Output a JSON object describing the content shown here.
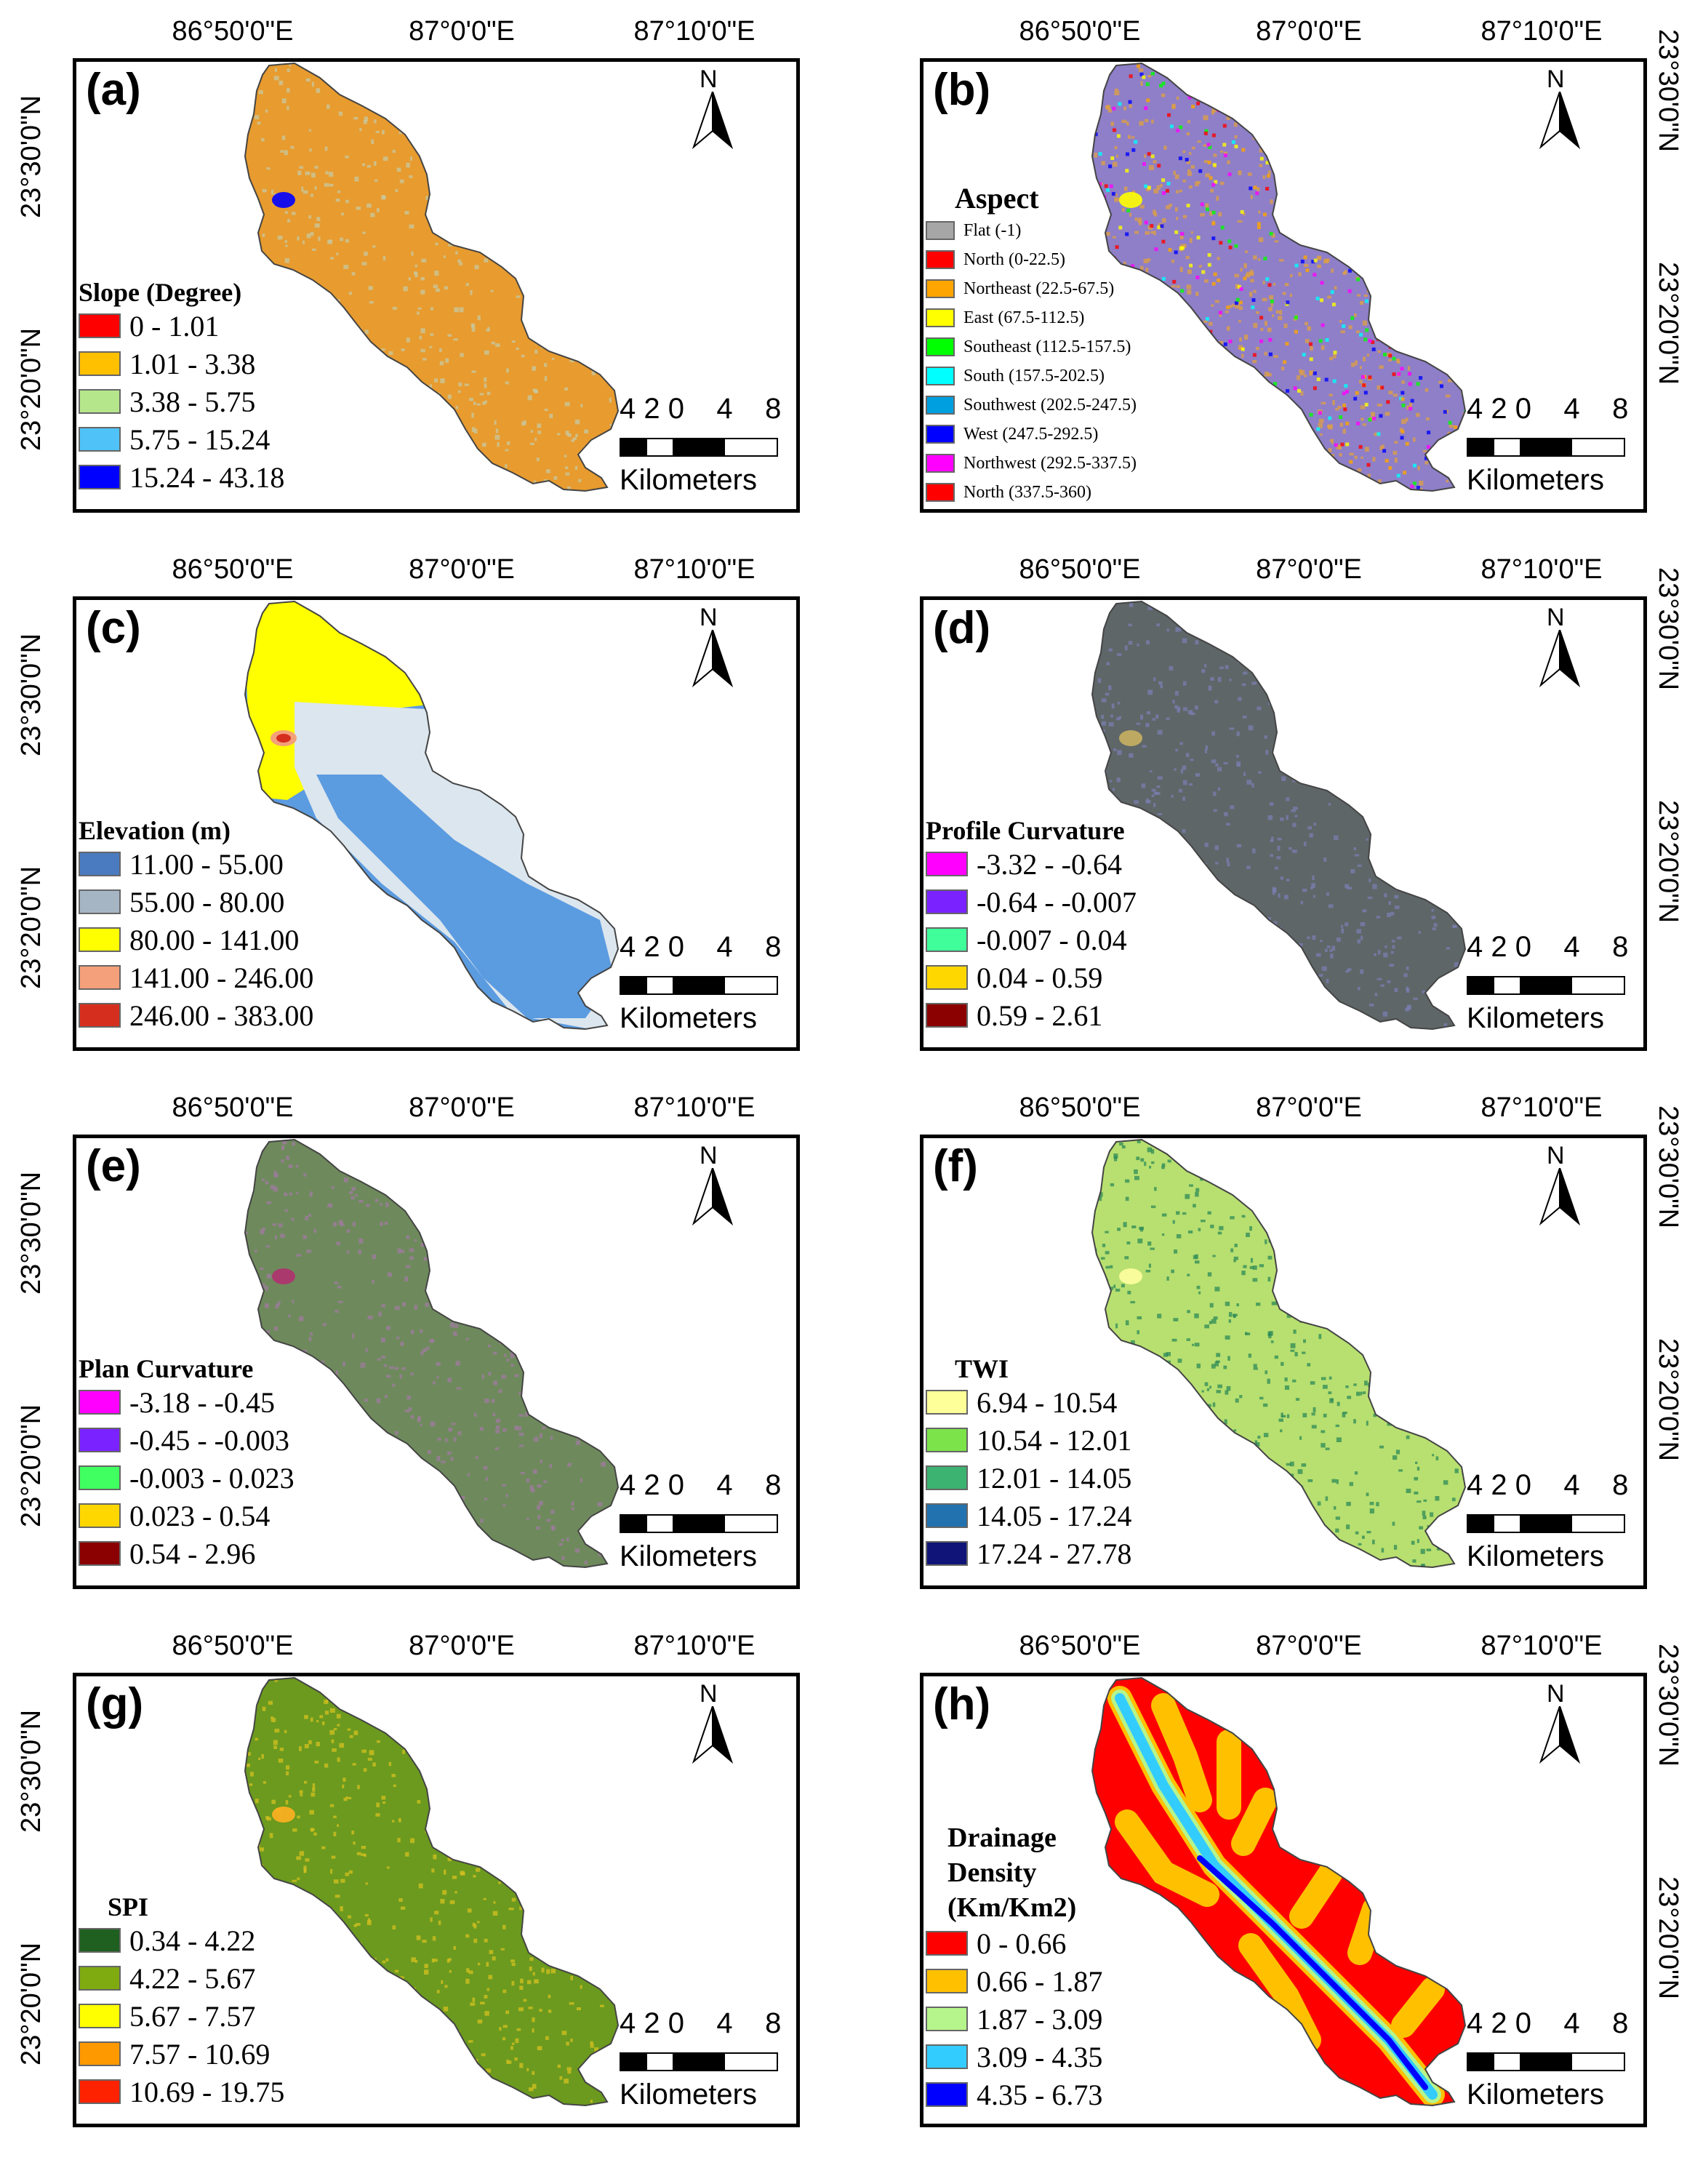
{
  "coords": {
    "top": [
      "86°50'0\"E",
      "87°0'0\"E",
      "87°10'0\"E"
    ],
    "side": [
      "23°30'0\"N",
      "23°20'0\"N"
    ]
  },
  "north_label": "N",
  "scale": {
    "numbers": "4 2 0    4    8",
    "units": "Kilometers"
  },
  "panels": [
    {
      "id": "a",
      "label": "(a)",
      "legend_title": "Slope (Degree)",
      "fill": "#E89B2E",
      "speckle": "#C8C8A0",
      "classes": [
        {
          "label": "0 - 1.01",
          "color": "#FF0000"
        },
        {
          "label": "1.01 - 3.38",
          "color": "#FFC000"
        },
        {
          "label": "3.38 - 5.75",
          "color": "#B5E68C"
        },
        {
          "label": "5.75 - 15.24",
          "color": "#4FC3F7"
        },
        {
          "label": "15.24 - 43.18",
          "color": "#0000FF"
        }
      ]
    },
    {
      "id": "b",
      "label": "(b)",
      "legend_title": "Aspect",
      "fill": "#8E7FC8",
      "speckle": "#E0A040",
      "classes": [
        {
          "label": "Flat (-1)",
          "color": "#A6A6A6"
        },
        {
          "label": "North (0-22.5)",
          "color": "#FF0000"
        },
        {
          "label": "Northeast (22.5-67.5)",
          "color": "#FFA500"
        },
        {
          "label": "East (67.5-112.5)",
          "color": "#FFFF00"
        },
        {
          "label": "Southeast (112.5-157.5)",
          "color": "#00FF00"
        },
        {
          "label": "South (157.5-202.5)",
          "color": "#00FFFF"
        },
        {
          "label": "Southwest (202.5-247.5)",
          "color": "#00A0E0"
        },
        {
          "label": "West (247.5-292.5)",
          "color": "#0000FF"
        },
        {
          "label": "Northwest (292.5-337.5)",
          "color": "#FF00FF"
        },
        {
          "label": "North (337.5-360)",
          "color": "#FF0000"
        }
      ]
    },
    {
      "id": "c",
      "label": "(c)",
      "legend_title": "Elevation (m)",
      "fill": "#5B9BE0",
      "speckle": "#D6E3EC",
      "classes": [
        {
          "label": "11.00 - 55.00",
          "color": "#4A7ABF"
        },
        {
          "label": "55.00 - 80.00",
          "color": "#A6B5C4"
        },
        {
          "label": "80.00 - 141.00",
          "color": "#FFFF00"
        },
        {
          "label": "141.00 - 246.00",
          "color": "#F4A07A"
        },
        {
          "label": "246.00 - 383.00",
          "color": "#D62E1E"
        }
      ]
    },
    {
      "id": "d",
      "label": "(d)",
      "legend_title": "Profile Curvature",
      "fill": "#5F6668",
      "speckle": "#7A7FB0",
      "classes": [
        {
          "label": "-3.32 - -0.64",
          "color": "#FF00FF"
        },
        {
          "label": "-0.64 - -0.007",
          "color": "#7A22FF"
        },
        {
          "label": "-0.007 - 0.04",
          "color": "#40FF9A"
        },
        {
          "label": "0.04 - 0.59",
          "color": "#FFD700"
        },
        {
          "label": "0.59 - 2.61",
          "color": "#8B0000"
        }
      ]
    },
    {
      "id": "e",
      "label": "(e)",
      "legend_title": "Plan Curvature",
      "fill": "#6E8A5C",
      "speckle": "#A07AA0",
      "classes": [
        {
          "label": "-3.18 - -0.45",
          "color": "#FF00FF"
        },
        {
          "label": "-0.45 - -0.003",
          "color": "#7A22FF"
        },
        {
          "label": "-0.003 - 0.023",
          "color": "#40FF60"
        },
        {
          "label": "0.023 - 0.54",
          "color": "#FFD700"
        },
        {
          "label": "0.54 - 2.96",
          "color": "#8B0000"
        }
      ]
    },
    {
      "id": "f",
      "label": "(f)",
      "legend_title": "TWI",
      "fill": "#B8E070",
      "speckle": "#2E8B57",
      "classes": [
        {
          "label": "6.94 - 10.54",
          "color": "#FFFF99"
        },
        {
          "label": "10.54 - 12.01",
          "color": "#7CE34A"
        },
        {
          "label": "12.01 - 14.05",
          "color": "#3CB371"
        },
        {
          "label": "14.05 - 17.24",
          "color": "#2272B0"
        },
        {
          "label": "17.24 - 27.78",
          "color": "#101478"
        }
      ]
    },
    {
      "id": "g",
      "label": "(g)",
      "legend_title": "SPI",
      "fill": "#6B9A1E",
      "speckle": "#D4C020",
      "classes": [
        {
          "label": "0.34 - 4.22",
          "color": "#1F5F1F"
        },
        {
          "label": "4.22 - 5.67",
          "color": "#7FAA10"
        },
        {
          "label": "5.67 - 7.57",
          "color": "#FFFF00"
        },
        {
          "label": "7.57 - 10.69",
          "color": "#FF9900"
        },
        {
          "label": "10.69 - 19.75",
          "color": "#FF2200"
        }
      ]
    },
    {
      "id": "h",
      "label": "(h)",
      "legend_title": "Drainage Density (Km/Km2)",
      "fill": "#FF0000",
      "speckle": "#FFC000",
      "classes": [
        {
          "label": "0 - 0.66",
          "color": "#FF0000"
        },
        {
          "label": "0.66 - 1.87",
          "color": "#FFC000"
        },
        {
          "label": "1.87 - 3.09",
          "color": "#B5F58C"
        },
        {
          "label": "3.09 - 4.35",
          "color": "#33CCFF"
        },
        {
          "label": "4.35 - 6.73",
          "color": "#0000FF"
        }
      ]
    }
  ]
}
